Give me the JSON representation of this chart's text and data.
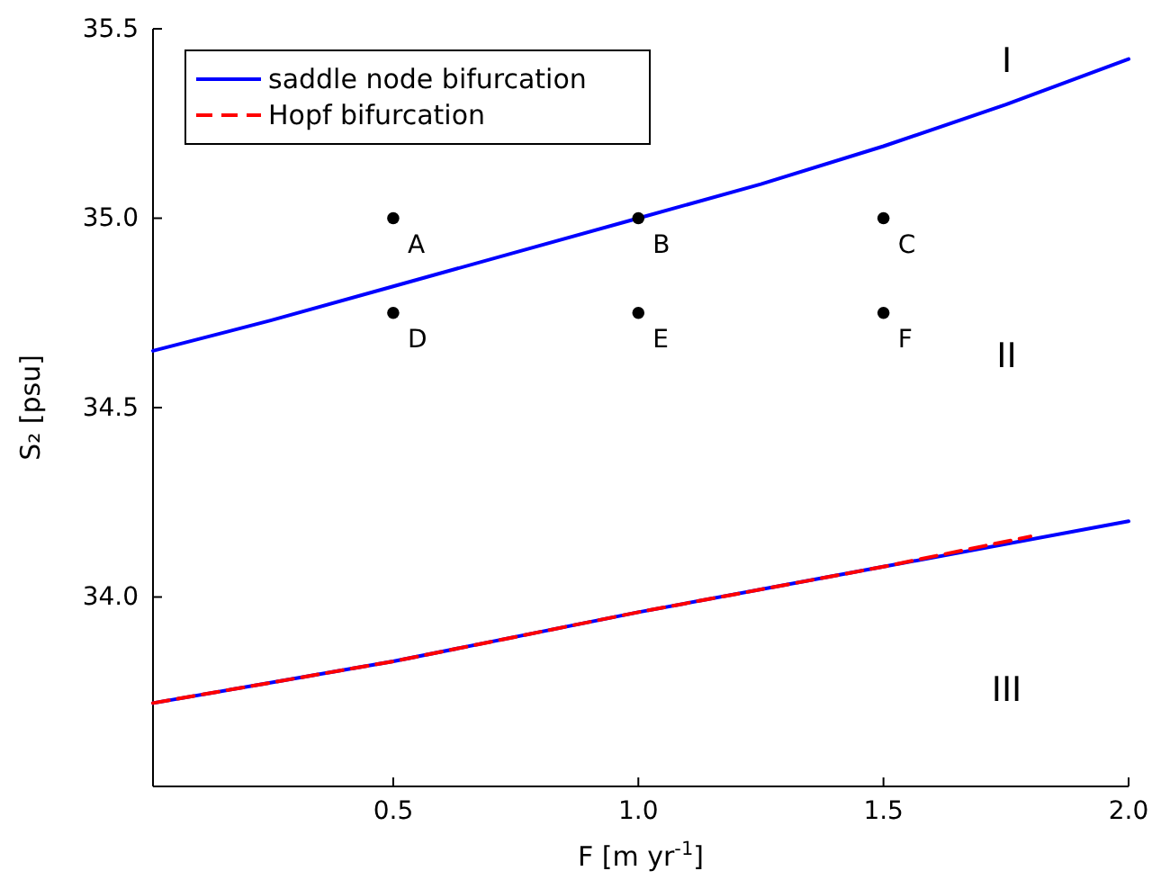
{
  "chart_data": {
    "type": "line",
    "xlabel": "F [m yr$^{-1}$]",
    "ylabel": "S₂ [psu]",
    "xlim": [
      0.01,
      2.0
    ],
    "ylim": [
      33.5,
      35.5
    ],
    "xticks": [
      {
        "value": 0.5,
        "label": "0.5"
      },
      {
        "value": 1.0,
        "label": "1.0"
      },
      {
        "value": 1.5,
        "label": "1.5"
      },
      {
        "value": 2.0,
        "label": "2.0"
      }
    ],
    "yticks": [
      {
        "value": 34.0,
        "label": "34.0"
      },
      {
        "value": 34.5,
        "label": "34.5"
      },
      {
        "value": 35.0,
        "label": "35.0"
      },
      {
        "value": 35.5,
        "label": "35.5"
      }
    ],
    "grid": false,
    "legend": "top left",
    "line_style": "solid",
    "marker": "none",
    "series": [
      {
        "name": "saddle node bifurcation",
        "color": "#0000ff",
        "x": [
          0.01,
          0.25,
          0.5,
          0.75,
          1.0,
          1.25,
          1.5,
          1.75,
          2.0
        ],
        "values": [
          34.65,
          34.73,
          34.82,
          34.91,
          35.0,
          35.09,
          35.19,
          35.3,
          35.42
        ]
      },
      {
        "color": "#0000ff",
        "x": [
          0.01,
          0.5,
          1.0,
          1.5,
          2.0
        ],
        "values": [
          33.72,
          33.83,
          33.96,
          34.08,
          34.2
        ]
      },
      {
        "name": "Hopf bifurcation",
        "color": "#ff0000",
        "line_style": "dashed",
        "x": [
          0.01,
          0.5,
          1.0,
          1.5,
          1.8
        ],
        "values": [
          33.72,
          33.83,
          33.96,
          34.08,
          34.16
        ]
      },
      {
        "color": "#000000",
        "type": "scatter",
        "marker": "circle",
        "x": [
          0.5,
          1.0,
          1.5,
          0.5,
          1.0,
          1.5
        ],
        "values": [
          35.0,
          35.0,
          35.0,
          34.75,
          34.75,
          34.75
        ]
      }
    ],
    "annotations": [
      {
        "text": "A",
        "x": 0.5,
        "y": 35.0
      },
      {
        "text": "B",
        "x": 1.0,
        "y": 35.0
      },
      {
        "text": "C",
        "x": 1.5,
        "y": 35.0
      },
      {
        "text": "D",
        "x": 0.5,
        "y": 34.75
      },
      {
        "text": "E",
        "x": 1.0,
        "y": 34.75
      },
      {
        "text": "F",
        "x": 1.5,
        "y": 34.75
      },
      "I",
      "II",
      "III"
    ]
  }
}
